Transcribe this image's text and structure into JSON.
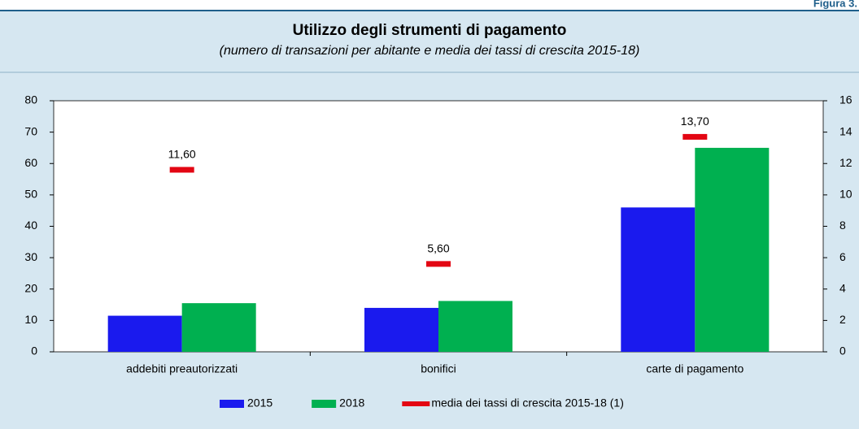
{
  "figure_label": "Figura 3.",
  "chart_data": {
    "type": "bar",
    "title": "Utilizzo degli strumenti di pagamento",
    "subtitle": "(numero di transazioni per abitante e media dei tassi di crescita 2015-18)",
    "categories": [
      "addebiti preautorizzati",
      "bonifici",
      "carte di pagamento"
    ],
    "series": [
      {
        "name": "2015",
        "color": "#1a1aee",
        "values": [
          11.5,
          14,
          46
        ]
      },
      {
        "name": "2018",
        "color": "#00b050",
        "values": [
          15.5,
          16.2,
          65
        ]
      },
      {
        "name": "media dei tassi di crescita 2015-18 (1)",
        "color": "#e30613",
        "axis": "y2",
        "values": [
          11.6,
          5.6,
          13.7
        ],
        "value_labels": [
          "11,60",
          "5,60",
          "13,70"
        ]
      }
    ],
    "ylim": [
      0,
      80
    ],
    "yticks": [
      0,
      10,
      20,
      30,
      40,
      50,
      60,
      70,
      80
    ],
    "y2lim": [
      0,
      16
    ],
    "y2ticks": [
      0,
      2,
      4,
      6,
      8,
      10,
      12,
      14,
      16
    ],
    "grid": false,
    "legend": "bottom"
  }
}
